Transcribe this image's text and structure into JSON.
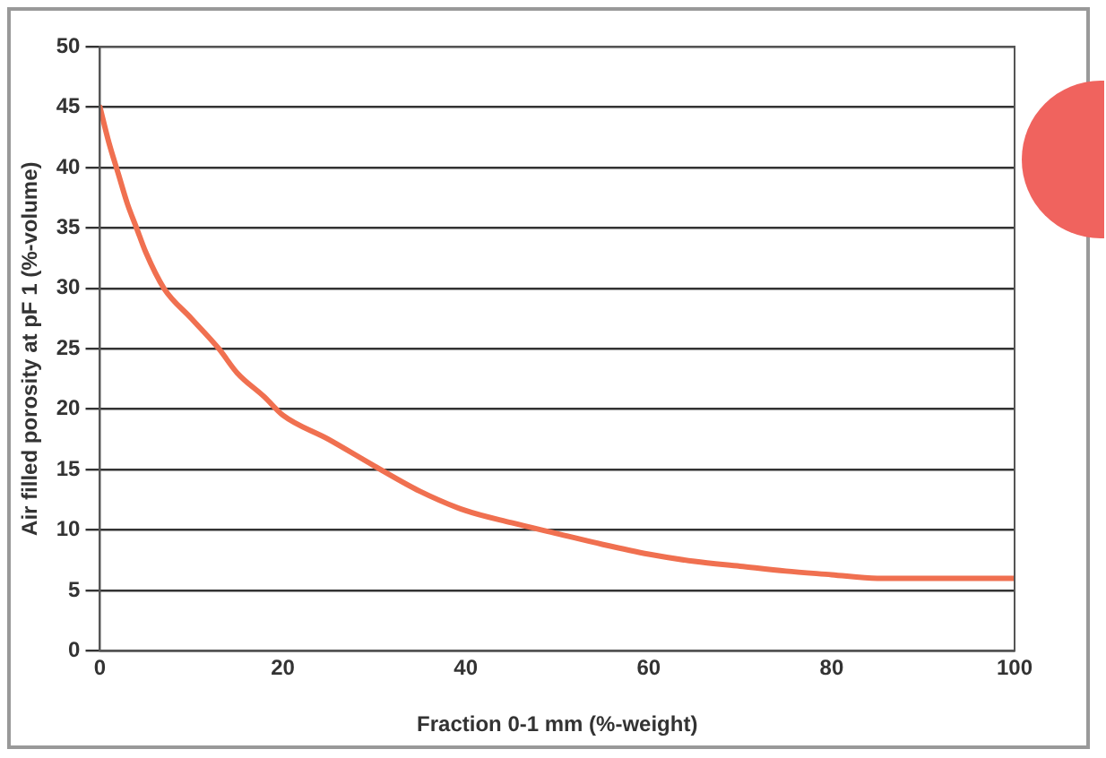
{
  "chart_data": {
    "type": "line",
    "xlabel": "Fraction 0-1 mm (%-weight)",
    "ylabel": "Air filled porosity at pF 1 (%-volume)",
    "series": [
      {
        "color": "#f07050",
        "x": [
          0,
          1,
          2,
          3,
          4,
          5,
          7,
          10,
          13,
          15,
          18,
          20,
          25,
          30,
          35,
          40,
          45,
          50,
          55,
          60,
          65,
          70,
          75,
          80,
          85,
          90,
          95,
          100
        ],
        "values": [
          45,
          42,
          39.5,
          37,
          35,
          33,
          30,
          27.5,
          25,
          23,
          21,
          19.5,
          17.5,
          15.3,
          13.2,
          11.6,
          10.6,
          9.7,
          8.8,
          8,
          7.4,
          7,
          6.6,
          6.3,
          6,
          6,
          6,
          6
        ]
      }
    ],
    "xlim": [
      0,
      100
    ],
    "xticks": [
      0,
      20,
      40,
      60,
      80,
      100
    ],
    "ylim": [
      0,
      50
    ],
    "yticks": [
      0,
      5,
      10,
      15,
      20,
      25,
      30,
      35,
      40,
      45,
      50
    ],
    "grid": "y",
    "legend": false,
    "marker": "none",
    "line_style": "solid"
  }
}
